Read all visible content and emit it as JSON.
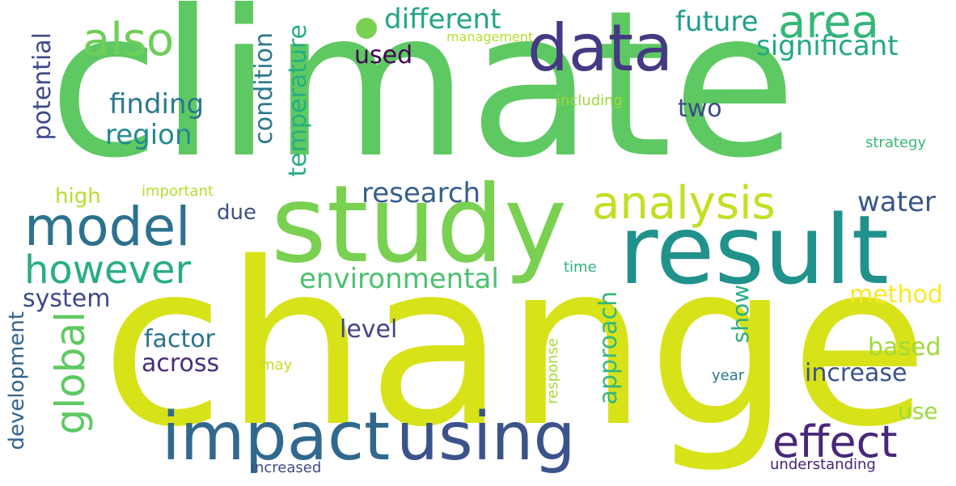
{
  "word_cloud": {
    "words": [
      {
        "text": "climate",
        "color": "#5ec962"
      },
      {
        "text": "change",
        "color": "#d8e219"
      },
      {
        "text": "study",
        "color": "#7ad151"
      },
      {
        "text": "result",
        "color": "#21918c"
      },
      {
        "text": "data",
        "color": "#443983"
      },
      {
        "text": "impact",
        "color": "#31688e"
      },
      {
        "text": "using",
        "color": "#3b528b"
      },
      {
        "text": "model",
        "color": "#2c728e"
      },
      {
        "text": "area",
        "color": "#35b779"
      },
      {
        "text": "also",
        "color": "#6ece58"
      },
      {
        "text": "analysis",
        "color": "#c2df23"
      },
      {
        "text": "however",
        "color": "#28ae80"
      },
      {
        "text": "global",
        "color": "#5ec962"
      },
      {
        "text": "effect",
        "color": "#482878"
      },
      {
        "text": "different",
        "color": "#21a585"
      },
      {
        "text": "future",
        "color": "#1f9e89"
      },
      {
        "text": "significant",
        "color": "#22a884"
      },
      {
        "text": "used",
        "color": "#440154"
      },
      {
        "text": "finding",
        "color": "#2a788e"
      },
      {
        "text": "region",
        "color": "#23898e"
      },
      {
        "text": "two",
        "color": "#3e4989"
      },
      {
        "text": "potential",
        "color": "#3e4a89"
      },
      {
        "text": "condition",
        "color": "#2a788e"
      },
      {
        "text": "temperature",
        "color": "#26ad81"
      },
      {
        "text": "research",
        "color": "#355f8d"
      },
      {
        "text": "water",
        "color": "#39568c"
      },
      {
        "text": "high",
        "color": "#b5de2b"
      },
      {
        "text": "due",
        "color": "#3b528b"
      },
      {
        "text": "environmental",
        "color": "#4ac16d"
      },
      {
        "text": "system",
        "color": "#3e4a89"
      },
      {
        "text": "method",
        "color": "#fde725"
      },
      {
        "text": "level",
        "color": "#414487"
      },
      {
        "text": "factor",
        "color": "#2c728e"
      },
      {
        "text": "across",
        "color": "#472d7b"
      },
      {
        "text": "approach",
        "color": "#35b779"
      },
      {
        "text": "show",
        "color": "#29af7f"
      },
      {
        "text": "development",
        "color": "#33638d"
      },
      {
        "text": "based",
        "color": "#a0da39"
      },
      {
        "text": "increase",
        "color": "#3b528b"
      },
      {
        "text": "use",
        "color": "#9bd93c"
      },
      {
        "text": "management",
        "color": "#b8de29"
      },
      {
        "text": "including",
        "color": "#9bd93c"
      },
      {
        "text": "strategy",
        "color": "#35b779"
      },
      {
        "text": "important",
        "color": "#b5de2b"
      },
      {
        "text": "time",
        "color": "#2db27d"
      },
      {
        "text": "response",
        "color": "#a8db34"
      },
      {
        "text": "may",
        "color": "#c2df23"
      },
      {
        "text": "year",
        "color": "#2a788e"
      },
      {
        "text": "increased",
        "color": "#3e4a89"
      },
      {
        "text": "understanding",
        "color": "#482475"
      }
    ]
  },
  "dot_color": "#7ad151"
}
